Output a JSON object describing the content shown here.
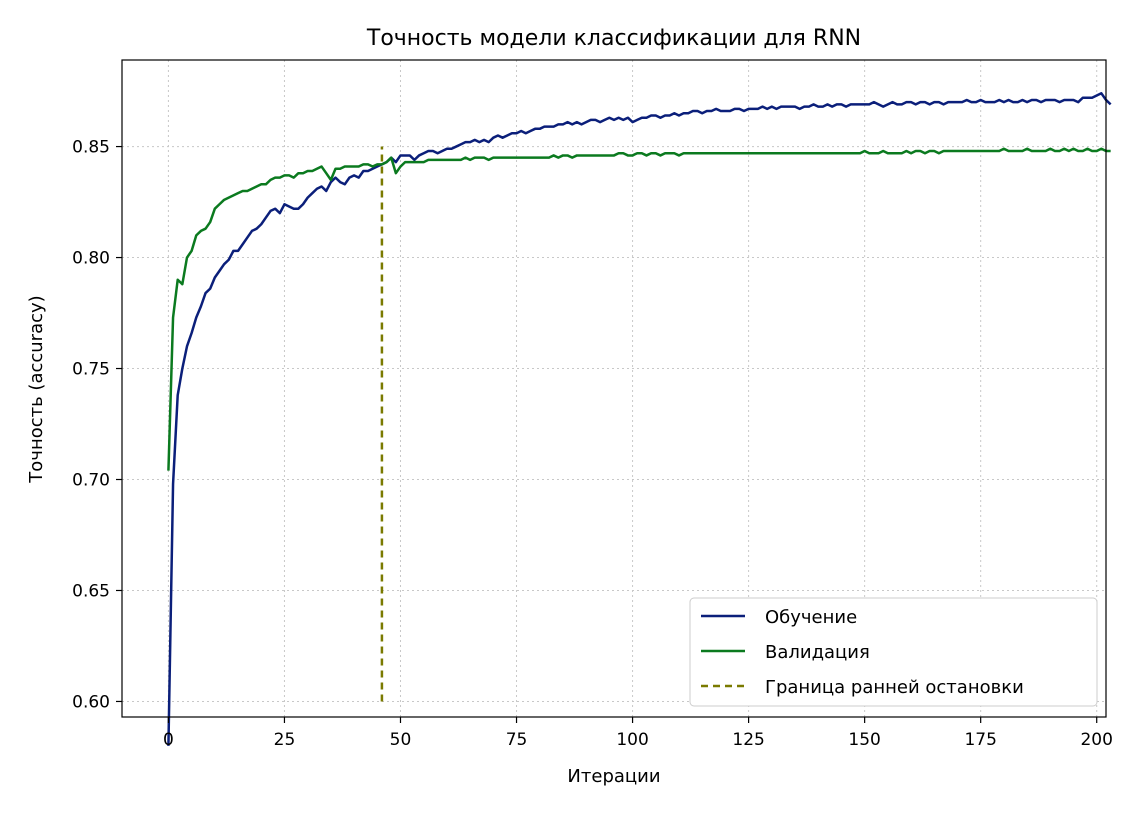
{
  "chart_data": {
    "type": "line",
    "title": "Точность  модели классификации для RNN",
    "xlabel": "Итерации",
    "ylabel": "Точность (accuracy)",
    "xlim": [
      -10,
      202
    ],
    "ylim": [
      0.593,
      0.889
    ],
    "xticks": [
      0,
      25,
      50,
      75,
      100,
      125,
      150,
      175,
      200
    ],
    "yticks": [
      0.6,
      0.65,
      0.7,
      0.75,
      0.8,
      0.85
    ],
    "xtick_labels": [
      "0",
      "25",
      "50",
      "75",
      "100",
      "125",
      "150",
      "175",
      "200"
    ],
    "ytick_labels": [
      "0.60",
      "0.65",
      "0.70",
      "0.75",
      "0.80",
      "0.85"
    ],
    "grid": true,
    "legend_position": "lower-right",
    "series": [
      {
        "name": "Обучение",
        "color": "#0b1f7a",
        "style": "solid",
        "x_start": 0,
        "x_step": 1,
        "values": [
          0.58,
          0.698,
          0.738,
          0.75,
          0.76,
          0.766,
          0.773,
          0.778,
          0.784,
          0.786,
          0.791,
          0.794,
          0.797,
          0.799,
          0.803,
          0.803,
          0.806,
          0.809,
          0.812,
          0.813,
          0.815,
          0.818,
          0.821,
          0.822,
          0.82,
          0.824,
          0.823,
          0.822,
          0.822,
          0.824,
          0.827,
          0.829,
          0.831,
          0.832,
          0.83,
          0.834,
          0.836,
          0.834,
          0.833,
          0.836,
          0.837,
          0.836,
          0.839,
          0.839,
          0.84,
          0.841,
          0.842,
          0.843,
          0.845,
          0.843,
          0.846,
          0.846,
          0.846,
          0.844,
          0.846,
          0.847,
          0.848,
          0.848,
          0.847,
          0.848,
          0.849,
          0.849,
          0.85,
          0.851,
          0.852,
          0.852,
          0.853,
          0.852,
          0.853,
          0.852,
          0.854,
          0.855,
          0.854,
          0.855,
          0.856,
          0.856,
          0.857,
          0.856,
          0.857,
          0.858,
          0.858,
          0.859,
          0.859,
          0.859,
          0.86,
          0.86,
          0.861,
          0.86,
          0.861,
          0.86,
          0.861,
          0.862,
          0.862,
          0.861,
          0.862,
          0.863,
          0.862,
          0.863,
          0.862,
          0.863,
          0.861,
          0.862,
          0.863,
          0.863,
          0.864,
          0.864,
          0.863,
          0.864,
          0.864,
          0.865,
          0.864,
          0.865,
          0.865,
          0.866,
          0.866,
          0.865,
          0.866,
          0.866,
          0.867,
          0.866,
          0.866,
          0.866,
          0.867,
          0.867,
          0.866,
          0.867,
          0.867,
          0.867,
          0.868,
          0.867,
          0.868,
          0.867,
          0.868,
          0.868,
          0.868,
          0.868,
          0.867,
          0.868,
          0.868,
          0.869,
          0.868,
          0.868,
          0.869,
          0.868,
          0.869,
          0.869,
          0.868,
          0.869,
          0.869,
          0.869,
          0.869,
          0.869,
          0.87,
          0.869,
          0.868,
          0.869,
          0.87,
          0.869,
          0.869,
          0.87,
          0.87,
          0.869,
          0.87,
          0.87,
          0.869,
          0.87,
          0.87,
          0.869,
          0.87,
          0.87,
          0.87,
          0.87,
          0.871,
          0.87,
          0.87,
          0.871,
          0.87,
          0.87,
          0.87,
          0.871,
          0.87,
          0.871,
          0.87,
          0.87,
          0.871,
          0.87,
          0.871,
          0.871,
          0.87,
          0.871,
          0.871,
          0.871,
          0.87,
          0.871,
          0.871,
          0.871,
          0.87,
          0.872,
          0.872,
          0.872,
          0.873,
          0.874,
          0.871,
          0.869
        ]
      },
      {
        "name": "Валидация",
        "color": "#0b7a1f",
        "style": "solid",
        "x_start": 0,
        "x_step": 1,
        "values": [
          0.704,
          0.773,
          0.79,
          0.788,
          0.8,
          0.803,
          0.81,
          0.812,
          0.813,
          0.816,
          0.822,
          0.824,
          0.826,
          0.827,
          0.828,
          0.829,
          0.83,
          0.83,
          0.831,
          0.832,
          0.833,
          0.833,
          0.835,
          0.836,
          0.836,
          0.837,
          0.837,
          0.836,
          0.838,
          0.838,
          0.839,
          0.839,
          0.84,
          0.841,
          0.838,
          0.835,
          0.84,
          0.84,
          0.841,
          0.841,
          0.841,
          0.841,
          0.842,
          0.842,
          0.841,
          0.842,
          0.842,
          0.843,
          0.845,
          0.838,
          0.841,
          0.843,
          0.843,
          0.843,
          0.843,
          0.843,
          0.844,
          0.844,
          0.844,
          0.844,
          0.844,
          0.844,
          0.844,
          0.844,
          0.845,
          0.844,
          0.845,
          0.845,
          0.845,
          0.844,
          0.845,
          0.845,
          0.845,
          0.845,
          0.845,
          0.845,
          0.845,
          0.845,
          0.845,
          0.845,
          0.845,
          0.845,
          0.845,
          0.846,
          0.845,
          0.846,
          0.846,
          0.845,
          0.846,
          0.846,
          0.846,
          0.846,
          0.846,
          0.846,
          0.846,
          0.846,
          0.846,
          0.847,
          0.847,
          0.846,
          0.846,
          0.847,
          0.847,
          0.846,
          0.847,
          0.847,
          0.846,
          0.847,
          0.847,
          0.847,
          0.846,
          0.847,
          0.847,
          0.847,
          0.847,
          0.847,
          0.847,
          0.847,
          0.847,
          0.847,
          0.847,
          0.847,
          0.847,
          0.847,
          0.847,
          0.847,
          0.847,
          0.847,
          0.847,
          0.847,
          0.847,
          0.847,
          0.847,
          0.847,
          0.847,
          0.847,
          0.847,
          0.847,
          0.847,
          0.847,
          0.847,
          0.847,
          0.847,
          0.847,
          0.847,
          0.847,
          0.847,
          0.847,
          0.847,
          0.847,
          0.848,
          0.847,
          0.847,
          0.847,
          0.848,
          0.847,
          0.847,
          0.847,
          0.847,
          0.848,
          0.847,
          0.848,
          0.848,
          0.847,
          0.848,
          0.848,
          0.847,
          0.848,
          0.848,
          0.848,
          0.848,
          0.848,
          0.848,
          0.848,
          0.848,
          0.848,
          0.848,
          0.848,
          0.848,
          0.848,
          0.849,
          0.848,
          0.848,
          0.848,
          0.848,
          0.849,
          0.848,
          0.848,
          0.848,
          0.848,
          0.849,
          0.848,
          0.848,
          0.849,
          0.848,
          0.849,
          0.848,
          0.848,
          0.849,
          0.848,
          0.848,
          0.849,
          0.848,
          0.848
        ]
      },
      {
        "name": "Граница ранней остановки",
        "color": "#7a7a00",
        "style": "dashed",
        "x": [
          46,
          46
        ],
        "values": [
          0.6,
          0.85
        ]
      }
    ]
  }
}
